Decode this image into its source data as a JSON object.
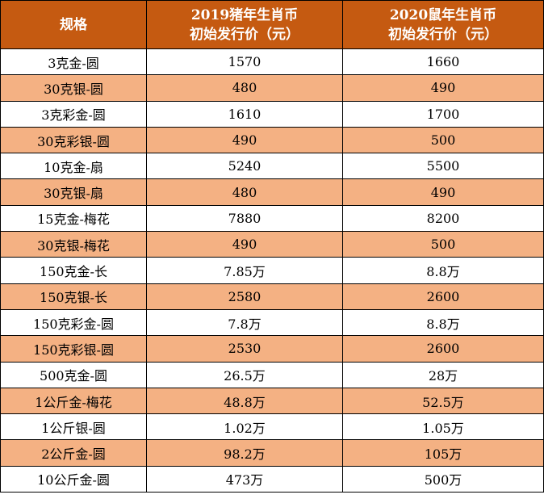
{
  "table": {
    "header": {
      "spec": "规格",
      "col2_line1": "2019猪年生肖币",
      "col2_line2": "初始发行价（元）",
      "col3_line1": "2020鼠年生肖币",
      "col3_line2": "初始发行价（元）"
    },
    "rows": [
      {
        "spec": "3克金-圆",
        "price_2019": "1570",
        "price_2020": "1660"
      },
      {
        "spec": "30克银-圆",
        "price_2019": "480",
        "price_2020": "490"
      },
      {
        "spec": "3克彩金-圆",
        "price_2019": "1610",
        "price_2020": "1700"
      },
      {
        "spec": "30克彩银-圆",
        "price_2019": "490",
        "price_2020": "500"
      },
      {
        "spec": "10克金-扇",
        "price_2019": "5240",
        "price_2020": "5500"
      },
      {
        "spec": "30克银-扇",
        "price_2019": "480",
        "price_2020": "490"
      },
      {
        "spec": "15克金-梅花",
        "price_2019": "7880",
        "price_2020": "8200"
      },
      {
        "spec": "30克银-梅花",
        "price_2019": "490",
        "price_2020": "500"
      },
      {
        "spec": "150克金-长",
        "price_2019": "7.85万",
        "price_2020": "8.8万"
      },
      {
        "spec": "150克银-长",
        "price_2019": "2580",
        "price_2020": "2600"
      },
      {
        "spec": "150克彩金-圆",
        "price_2019": "7.8万",
        "price_2020": "8.8万"
      },
      {
        "spec": "150克彩银-圆",
        "price_2019": "2530",
        "price_2020": "2600"
      },
      {
        "spec": "500克金-圆",
        "price_2019": "26.5万",
        "price_2020": "28万"
      },
      {
        "spec": "1公斤金-梅花",
        "price_2019": "48.8万",
        "price_2020": "52.5万"
      },
      {
        "spec": "1公斤银-圆",
        "price_2019": "1.02万",
        "price_2020": "1.05万"
      },
      {
        "spec": "2公斤金-圆",
        "price_2019": "98.2万",
        "price_2020": "105万"
      },
      {
        "spec": "10公斤金-圆",
        "price_2019": "473万",
        "price_2020": "500万"
      }
    ]
  },
  "colors": {
    "header_bg": "#c55a11",
    "stripe_bg": "#f4b183",
    "plain_bg": "#ffffff"
  }
}
